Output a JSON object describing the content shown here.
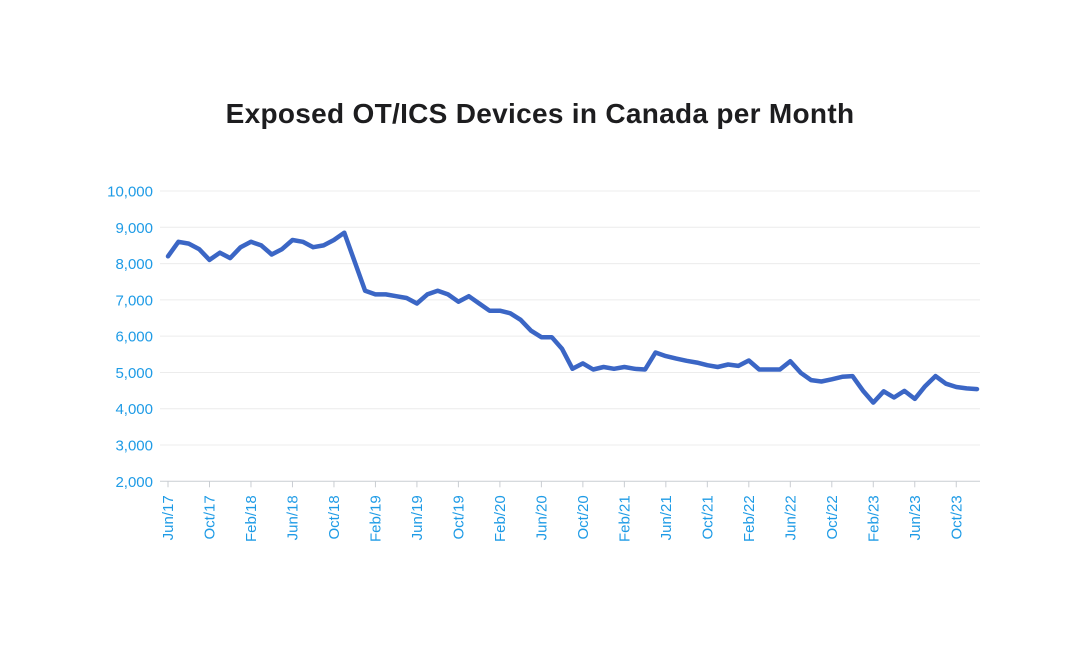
{
  "chart_data": {
    "type": "line",
    "title": "Exposed OT/ICS Devices in Canada per Month",
    "xlabel": "",
    "ylabel": "",
    "ylim": [
      2000,
      10000
    ],
    "y_tick_step": 1000,
    "y_tick_labels": [
      "2,000",
      "3,000",
      "4,000",
      "5,000",
      "6,000",
      "7,000",
      "8,000",
      "9,000",
      "10,000"
    ],
    "x_tick_every": 4,
    "x_tick_labels": [
      "Jun/17",
      "Oct/17",
      "Feb/18",
      "Jun/18",
      "Oct/18",
      "Feb/19",
      "Jun/19",
      "Oct/19",
      "Feb/20",
      "Jun/20",
      "Oct/20",
      "Feb/21",
      "Jun/21",
      "Oct/21",
      "Feb/22",
      "Jun/22",
      "Oct/22",
      "Feb/23",
      "Jun/23",
      "Oct/23"
    ],
    "categories": [
      "Jun/17",
      "Jul/17",
      "Aug/17",
      "Sep/17",
      "Oct/17",
      "Nov/17",
      "Dec/17",
      "Jan/18",
      "Feb/18",
      "Mar/18",
      "Apr/18",
      "May/18",
      "Jun/18",
      "Jul/18",
      "Aug/18",
      "Sep/18",
      "Oct/18",
      "Nov/18",
      "Dec/18",
      "Jan/19",
      "Feb/19",
      "Mar/19",
      "Apr/19",
      "May/19",
      "Jun/19",
      "Jul/19",
      "Aug/19",
      "Sep/19",
      "Oct/19",
      "Nov/19",
      "Dec/19",
      "Jan/20",
      "Feb/20",
      "Mar/20",
      "Apr/20",
      "May/20",
      "Jun/20",
      "Jul/20",
      "Aug/20",
      "Sep/20",
      "Oct/20",
      "Nov/20",
      "Dec/20",
      "Jan/21",
      "Feb/21",
      "Mar/21",
      "Apr/21",
      "May/21",
      "Jun/21",
      "Jul/21",
      "Aug/21",
      "Sep/21",
      "Oct/21",
      "Nov/21",
      "Dec/21",
      "Jan/22",
      "Feb/22",
      "Mar/22",
      "Apr/22",
      "May/22",
      "Jun/22",
      "Jul/22",
      "Aug/22",
      "Sep/22",
      "Oct/22",
      "Nov/22",
      "Dec/22",
      "Jan/23",
      "Feb/23",
      "Mar/23",
      "Apr/23",
      "May/23",
      "Jun/23",
      "Jul/23",
      "Aug/23",
      "Sep/23",
      "Oct/23",
      "Nov/23",
      "Dec/23"
    ],
    "series": [
      {
        "name": "Exposed OT/ICS devices",
        "values": [
          8200,
          8600,
          8550,
          8400,
          8100,
          8300,
          8150,
          8450,
          8600,
          8500,
          8250,
          8400,
          8650,
          8600,
          8450,
          8500,
          8650,
          8850,
          8050,
          7250,
          7150,
          7150,
          7100,
          7050,
          6900,
          7150,
          7250,
          7150,
          6950,
          7100,
          6900,
          6700,
          6700,
          6630,
          6450,
          6150,
          5970,
          5970,
          5650,
          5100,
          5250,
          5080,
          5150,
          5100,
          5150,
          5100,
          5080,
          5550,
          5450,
          5380,
          5320,
          5270,
          5200,
          5150,
          5220,
          5180,
          5330,
          5080,
          5080,
          5080,
          5310,
          4990,
          4790,
          4750,
          4810,
          4880,
          4900,
          4500,
          4170,
          4480,
          4310,
          4490,
          4270,
          4620,
          4900,
          4690,
          4600,
          4560,
          4540
        ]
      }
    ],
    "legend": "none",
    "grid": "horizontal",
    "colors": {
      "line": "#3B66C5",
      "axis_labels": "#1E9BE6",
      "title": "#1D1D1F",
      "gridline": "#ECECEC",
      "axis_line": "#C9CDD2",
      "background": "#FFFFFF"
    }
  }
}
